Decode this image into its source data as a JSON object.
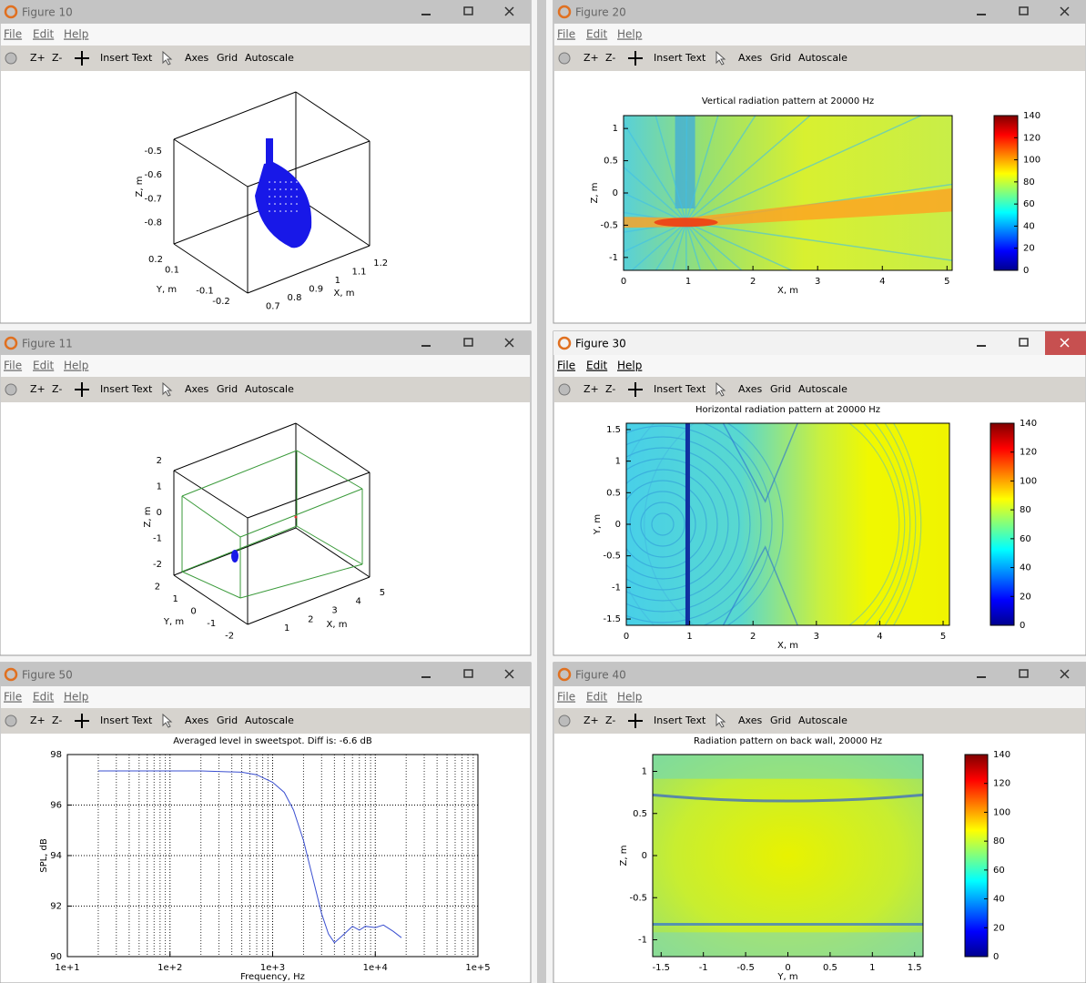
{
  "windows": [
    {
      "title": "Figure 10",
      "menu": [
        "File",
        "Edit",
        "Help"
      ],
      "toolbar": [
        "Z+",
        "Z-",
        "Insert Text",
        "Axes",
        "Grid",
        "Autoscale"
      ],
      "plot": {
        "type": "scatter3d",
        "xlabel": "X, m",
        "ylabel": "Y, m",
        "zlabel": "Z, m",
        "xlim": [
          0.65,
          1.25
        ],
        "ylim": [
          -0.25,
          0.25
        ],
        "zlim": [
          -0.89,
          -0.45
        ],
        "xticks": [
          0.7,
          0.8,
          0.9,
          1,
          1.1,
          1.2
        ],
        "yticks": [
          0.2,
          0.1,
          -0.1,
          -0.2
        ],
        "zticks": [
          -0.5,
          -0.6,
          -0.7,
          -0.8
        ]
      }
    },
    {
      "title": "Figure 20",
      "menu": [
        "File",
        "Edit",
        "Help"
      ],
      "toolbar": [
        "Z+",
        "Z-",
        "Insert Text",
        "Axes",
        "Grid",
        "Autoscale"
      ],
      "plot": {
        "type": "heatmap",
        "title": "Vertical radiation pattern at 20000 Hz",
        "xlabel": "X, m",
        "ylabel": "Z, m",
        "xlim": [
          0,
          5.08
        ],
        "ylim": [
          -1.2,
          1.2
        ],
        "xticks": [
          0,
          1,
          2,
          3,
          4,
          5
        ],
        "yticks": [
          1,
          0.5,
          0,
          -0.5,
          -1
        ],
        "colormap": "jet",
        "clim": [
          0,
          140
        ],
        "cticks": [
          140,
          120,
          100,
          80,
          60,
          40,
          20,
          0
        ]
      }
    },
    {
      "title": "Figure 11",
      "menu": [
        "File",
        "Edit",
        "Help"
      ],
      "toolbar": [
        "Z+",
        "Z-",
        "Insert Text",
        "Axes",
        "Grid",
        "Autoscale"
      ],
      "plot": {
        "type": "scatter3d",
        "xlabel": "X, m",
        "ylabel": "Y, m",
        "zlabel": "Z, m",
        "xlim": [
          0,
          5.5
        ],
        "ylim": [
          -2.5,
          2.5
        ],
        "zlim": [
          -2.5,
          2.5
        ],
        "xticks": [
          1,
          2,
          3,
          4,
          5
        ],
        "yticks": [
          2,
          1,
          0,
          -1,
          -2
        ],
        "zticks": [
          2,
          1,
          0,
          -1,
          -2
        ]
      }
    },
    {
      "title": "Figure 30",
      "active": true,
      "menu": [
        "File",
        "Edit",
        "Help"
      ],
      "toolbar": [
        "Z+",
        "Z-",
        "Insert Text",
        "Axes",
        "Grid",
        "Autoscale"
      ],
      "plot": {
        "type": "heatmap",
        "title": "Horizontal radiation pattern at 20000 Hz",
        "xlabel": "X, m",
        "ylabel": "Y, m",
        "xlim": [
          0,
          5.1
        ],
        "ylim": [
          -1.6,
          1.6
        ],
        "xticks": [
          0,
          1,
          2,
          3,
          4,
          5
        ],
        "yticks": [
          1.5,
          1,
          0.5,
          0,
          -0.5,
          -1,
          -1.5
        ],
        "colormap": "jet",
        "clim": [
          0,
          140
        ],
        "cticks": [
          140,
          120,
          100,
          80,
          60,
          40,
          20,
          0
        ]
      }
    },
    {
      "title": "Figure 50",
      "menu": [
        "File",
        "Edit",
        "Help"
      ],
      "toolbar": [
        "Z+",
        "Z-",
        "Insert Text",
        "Axes",
        "Grid",
        "Autoscale"
      ],
      "plot": {
        "type": "line",
        "title": "Averaged level in sweetspot. Diff is: -6.6 dB",
        "xlabel": "Frequency, Hz",
        "ylabel": "SPL, dB",
        "xscale": "log",
        "grid": true,
        "xlim": [
          10,
          100000
        ],
        "ylim": [
          90,
          98
        ],
        "xticks": [
          {
            "value": 10,
            "label": "1e+1"
          },
          {
            "value": 100,
            "label": "1e+2"
          },
          {
            "value": 1000,
            "label": "1e+3"
          },
          {
            "value": 10000,
            "label": "1e+4"
          },
          {
            "value": 100000,
            "label": "1e+5"
          }
        ],
        "yticks": [
          90,
          92,
          94,
          96,
          98
        ],
        "x": [
          20,
          50,
          100,
          200,
          500,
          700,
          1000,
          1300,
          1600,
          2000,
          2500,
          3000,
          3500,
          4000,
          5000,
          6000,
          7000,
          8000,
          10000,
          12000,
          15000,
          18000
        ],
        "series": [
          {
            "color": "#3a4fd0",
            "values": [
              97.35,
              97.35,
              97.35,
              97.35,
              97.3,
              97.2,
              96.9,
              96.5,
              95.8,
              94.6,
              93,
              91.7,
              90.9,
              90.55,
              90.9,
              91.2,
              91.05,
              91.2,
              91.15,
              91.25,
              91.0,
              90.75
            ]
          }
        ]
      }
    },
    {
      "title": "Figure 40",
      "menu": [
        "File",
        "Edit",
        "Help"
      ],
      "toolbar": [
        "Z+",
        "Z-",
        "Insert Text",
        "Axes",
        "Grid",
        "Autoscale"
      ],
      "plot": {
        "type": "heatmap",
        "title": "Radiation pattern on back wall, 20000 Hz",
        "xlabel": "Y, m",
        "ylabel": "Z, m",
        "xlim": [
          -1.6,
          1.6
        ],
        "ylim": [
          -1.2,
          1.2
        ],
        "xticks": [
          -1.5,
          -1,
          -0.5,
          0,
          0.5,
          1,
          1.5
        ],
        "yticks": [
          1,
          0.5,
          0,
          -0.5,
          -1
        ],
        "colormap": "jet",
        "clim": [
          0,
          140
        ],
        "cticks": [
          140,
          120,
          100,
          80,
          60,
          40,
          20,
          0
        ]
      }
    }
  ]
}
